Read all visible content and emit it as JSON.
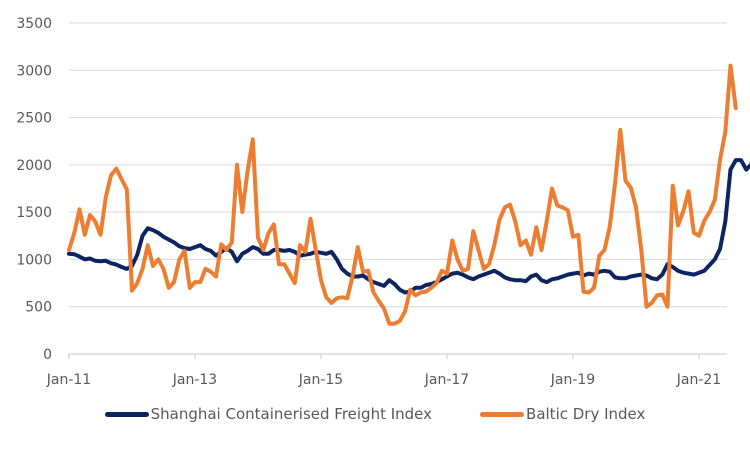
{
  "chart_data": {
    "type": "line",
    "title": "",
    "xlabel": "",
    "ylabel": "",
    "ylim": [
      0,
      3500
    ],
    "yticks": [
      "0",
      "500",
      "1000",
      "1500",
      "2000",
      "2500",
      "3000",
      "3500"
    ],
    "ytick_values": [
      0,
      500,
      1000,
      1500,
      2000,
      2500,
      3000,
      3500
    ],
    "xticks": [
      "Jan-11",
      "Jan-13",
      "Jan-15",
      "Jan-17",
      "Jan-19",
      "Jan-21"
    ],
    "xtick_month_index": [
      0,
      24,
      48,
      72,
      96,
      120
    ],
    "x_start": "Jan-11",
    "x_end": "Jun-21",
    "x_frequency": "monthly",
    "grid": true,
    "legend_position": "bottom",
    "series": [
      {
        "name": "Shanghai Containerised Freight Index",
        "color": "#0c2461",
        "values": [
          1060,
          1055,
          1030,
          1000,
          1010,
          985,
          980,
          985,
          960,
          945,
          920,
          900,
          930,
          1050,
          1250,
          1330,
          1310,
          1280,
          1240,
          1210,
          1180,
          1140,
          1120,
          1110,
          1130,
          1150,
          1110,
          1090,
          1040,
          1080,
          1120,
          1080,
          980,
          1060,
          1090,
          1130,
          1110,
          1060,
          1060,
          1100,
          1100,
          1090,
          1100,
          1080,
          1040,
          1050,
          1060,
          1080,
          1070,
          1060,
          1080,
          1000,
          900,
          850,
          820,
          820,
          830,
          790,
          760,
          740,
          720,
          780,
          740,
          680,
          650,
          660,
          700,
          700,
          730,
          740,
          760,
          790,
          820,
          850,
          860,
          840,
          810,
          790,
          820,
          840,
          860,
          880,
          850,
          810,
          790,
          780,
          780,
          770,
          820,
          840,
          780,
          760,
          790,
          800,
          820,
          840,
          850,
          860,
          830,
          850,
          840,
          870,
          880,
          870,
          810,
          800,
          800,
          820,
          830,
          840,
          830,
          800,
          790,
          840,
          950,
          920,
          880,
          860,
          850,
          840,
          860,
          880,
          940,
          1000,
          1110,
          1400,
          1950,
          2050,
          2050,
          1950,
          2010,
          2300
        ]
      },
      {
        "name": "Baltic Dry Index",
        "color": "#ed7d31",
        "values": [
          1100,
          1280,
          1530,
          1260,
          1470,
          1400,
          1260,
          1660,
          1890,
          1960,
          1850,
          1740,
          670,
          750,
          900,
          1150,
          930,
          1000,
          900,
          700,
          760,
          1000,
          1090,
          700,
          760,
          760,
          900,
          870,
          820,
          1160,
          1100,
          1180,
          2000,
          1500,
          1930,
          2270,
          1230,
          1100,
          1280,
          1370,
          950,
          950,
          850,
          750,
          1150,
          1080,
          1430,
          1100,
          780,
          600,
          540,
          590,
          600,
          590,
          820,
          1130,
          870,
          880,
          650,
          560,
          480,
          320,
          320,
          350,
          450,
          680,
          620,
          650,
          660,
          700,
          750,
          880,
          850,
          1200,
          1000,
          880,
          900,
          1300,
          1100,
          900,
          950,
          1150,
          1420,
          1550,
          1580,
          1400,
          1150,
          1200,
          1050,
          1340,
          1100,
          1410,
          1750,
          1570,
          1550,
          1520,
          1240,
          1260,
          660,
          650,
          700,
          1040,
          1100,
          1350,
          1800,
          2370,
          1830,
          1760,
          1550,
          1100,
          500,
          540,
          620,
          630,
          500,
          1780,
          1360,
          1510,
          1720,
          1280,
          1250,
          1410,
          1500,
          1630,
          2050,
          2350,
          3050,
          2600
        ]
      }
    ]
  },
  "legend": {
    "items": [
      {
        "label": "Shanghai Containerised Freight Index",
        "color": "#0c2461"
      },
      {
        "label": "Baltic Dry Index",
        "color": "#ed7d31"
      }
    ]
  },
  "style": {
    "grid_color": "#d9d9d9",
    "axis_color": "#d9d9d9",
    "text_color": "#595959"
  }
}
